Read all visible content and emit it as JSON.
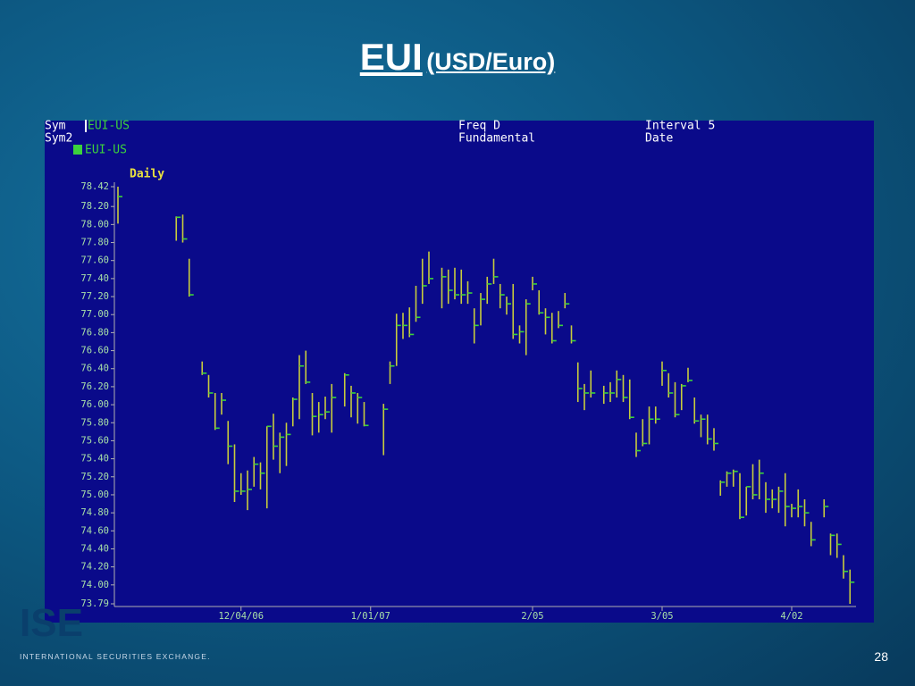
{
  "slide": {
    "title": "EUI",
    "subtitle": "(USD/Euro)",
    "logo": "ISE",
    "footer": "INTERNATIONAL SECURITIES EXCHANGE.",
    "page_number": "28"
  },
  "chart_data": {
    "type": "hlc",
    "title": "Daily",
    "header": {
      "sym_label": "Sym",
      "sym": "EUI-US",
      "sym2_label": "Sym2",
      "sym2": "EUI-US",
      "freq": "Freq D",
      "mode": "Fundamental",
      "interval": "Interval 5",
      "date": "Date"
    },
    "color": "#c8cc3c",
    "close_color": "#3cd23c",
    "ylim": [
      73.79,
      78.42
    ],
    "yticks": [
      78.42,
      {
        "value": 78.2,
        "label": "78.20"
      },
      {
        "value": 78,
        "label": "78.00"
      },
      {
        "value": 77.8,
        "label": "77.80"
      },
      {
        "value": 77.6,
        "label": "77.60"
      },
      {
        "value": 77.4,
        "label": "77.40"
      },
      {
        "value": 77.2,
        "label": "77.20"
      },
      {
        "value": 77,
        "label": "77.00"
      },
      {
        "value": 76.8,
        "label": "76.80"
      },
      {
        "value": 76.6,
        "label": "76.60"
      },
      {
        "value": 76.4,
        "label": "76.40"
      },
      {
        "value": 76.2,
        "label": "76.20"
      },
      {
        "value": 76,
        "label": "76.00"
      },
      {
        "value": 75.8,
        "label": "75.80"
      },
      {
        "value": 75.6,
        "label": "75.60"
      },
      {
        "value": 75.4,
        "label": "75.40"
      },
      {
        "value": 75.2,
        "label": "75.20"
      },
      {
        "value": 75,
        "label": "75.00"
      },
      {
        "value": 74.8,
        "label": "74.80"
      },
      {
        "value": 74.6,
        "label": "74.60"
      },
      {
        "value": 74.4,
        "label": "74.40"
      },
      {
        "value": 74.2,
        "label": "74.20"
      },
      {
        "value": 74,
        "label": "74.00"
      },
      73.79
    ],
    "categories": [
      null,
      null,
      null,
      null,
      null,
      null,
      null,
      null,
      null,
      null,
      null,
      null,
      null,
      null,
      null,
      null,
      null,
      null,
      null,
      "12/04/06",
      null,
      null,
      null,
      null,
      null,
      null,
      null,
      null,
      null,
      null,
      null,
      null,
      null,
      null,
      null,
      null,
      null,
      null,
      null,
      "1/01/07",
      null,
      null,
      null,
      null,
      null,
      null,
      null,
      null,
      null,
      null,
      null,
      null,
      null,
      null,
      null,
      null,
      null,
      null,
      null,
      null,
      null,
      null,
      null,
      null,
      "2/05",
      null,
      null,
      null,
      null,
      null,
      null,
      null,
      null,
      null,
      null,
      null,
      null,
      null,
      null,
      null,
      null,
      null,
      null,
      null,
      "3/05",
      null,
      null,
      null,
      null,
      null,
      null,
      null,
      null,
      null,
      null,
      null,
      null,
      null,
      null,
      null,
      null,
      null,
      null,
      null,
      "4/02",
      null,
      null,
      null,
      null,
      null,
      null,
      null,
      null,
      null,
      null
    ],
    "high": [
      78.42,
      null,
      null,
      null,
      null,
      null,
      null,
      null,
      null,
      78.09,
      78.11,
      77.62,
      null,
      76.48,
      76.33,
      76.13,
      76.13,
      75.82,
      75.56,
      75.24,
      75.27,
      75.42,
      75.36,
      75.76,
      75.9,
      75.69,
      75.8,
      76.08,
      76.55,
      76.6,
      76.13,
      76.03,
      76.09,
      76.23,
      null,
      76.35,
      76.21,
      76.13,
      76.03,
      null,
      null,
      76.01,
      76.48,
      77.01,
      77.02,
      77.08,
      77.32,
      77.62,
      77.7,
      null,
      77.52,
      77.5,
      77.52,
      77.5,
      77.37,
      77.07,
      77.24,
      77.42,
      77.62,
      77.34,
      77.2,
      77.34,
      76.88,
      77.17,
      77.42,
      77.27,
      77.07,
      77.02,
      77.04,
      77.24,
      76.88,
      76.47,
      76.23,
      76.38,
      null,
      76.21,
      76.25,
      76.38,
      76.33,
      76.28,
      75.69,
      75.84,
      75.98,
      75.98,
      76.48,
      76.35,
      76.25,
      76.23,
      76.41,
      76.08,
      75.89,
      75.89,
      75.74,
      75.16,
      75.26,
      75.28,
      75.24,
      75.09,
      75.34,
      75.39,
      75.14,
      75.06,
      75.09,
      75.24,
      74.9,
      75.06,
      74.95,
      74.7,
      null,
      74.95,
      74.57,
      74.57,
      74.33,
      74.17,
      null
    ],
    "low": [
      78.01,
      null,
      null,
      null,
      null,
      null,
      null,
      null,
      null,
      77.82,
      77.8,
      77.2,
      null,
      76.33,
      76.08,
      75.72,
      75.89,
      75.34,
      74.92,
      75.0,
      74.83,
      75.09,
      75.06,
      74.85,
      75.39,
      75.24,
      75.32,
      75.76,
      75.84,
      76.23,
      75.66,
      75.69,
      75.84,
      75.69,
      null,
      75.98,
      75.86,
      75.79,
      75.76,
      null,
      null,
      75.44,
      76.23,
      76.43,
      76.73,
      76.75,
      76.92,
      77.12,
      77.34,
      null,
      77.07,
      77.12,
      77.17,
      77.12,
      77.12,
      76.68,
      76.88,
      77.12,
      77.34,
      77.07,
      77.0,
      76.73,
      76.68,
      76.55,
      77.27,
      77.0,
      76.78,
      76.68,
      76.85,
      77.07,
      76.68,
      76.03,
      75.94,
      76.08,
      null,
      76.01,
      76.03,
      76.08,
      76.03,
      75.84,
      75.42,
      75.54,
      75.56,
      75.79,
      76.21,
      76.08,
      75.86,
      75.94,
      76.25,
      75.79,
      75.64,
      75.56,
      75.49,
      74.99,
      75.09,
      75.09,
      74.73,
      74.77,
      74.95,
      74.95,
      74.8,
      74.85,
      74.8,
      74.65,
      74.75,
      74.75,
      74.65,
      74.43,
      null,
      74.75,
      74.33,
      74.3,
      74.07,
      73.79,
      null
    ],
    "close": [
      78.31,
      null,
      null,
      null,
      null,
      null,
      null,
      null,
      null,
      78.08,
      77.84,
      77.22,
      null,
      76.35,
      76.13,
      75.74,
      76.05,
      75.54,
      75.04,
      75.04,
      75.06,
      75.34,
      75.24,
      75.76,
      75.54,
      75.64,
      75.67,
      76.06,
      76.43,
      76.25,
      75.87,
      75.89,
      75.92,
      76.08,
      null,
      76.33,
      76.13,
      76.08,
      75.77,
      null,
      null,
      75.95,
      76.43,
      76.88,
      76.88,
      76.78,
      76.97,
      77.32,
      77.4,
      null,
      77.42,
      77.27,
      77.22,
      77.22,
      77.24,
      76.88,
      77.17,
      77.34,
      77.42,
      77.22,
      77.12,
      76.78,
      76.81,
      77.12,
      77.34,
      77.02,
      76.97,
      76.71,
      76.88,
      77.12,
      76.71,
      76.18,
      76.13,
      76.13,
      null,
      76.13,
      76.13,
      76.28,
      76.08,
      75.86,
      75.49,
      75.57,
      75.84,
      75.84,
      76.38,
      76.13,
      75.89,
      76.21,
      76.27,
      75.82,
      75.84,
      75.62,
      75.57,
      75.14,
      75.24,
      75.26,
      74.75,
      75.09,
      75.0,
      75.24,
      74.95,
      74.95,
      75.04,
      74.87,
      74.85,
      74.87,
      74.8,
      74.5,
      null,
      74.87,
      74.55,
      74.45,
      74.15,
      74.03,
      null
    ]
  }
}
